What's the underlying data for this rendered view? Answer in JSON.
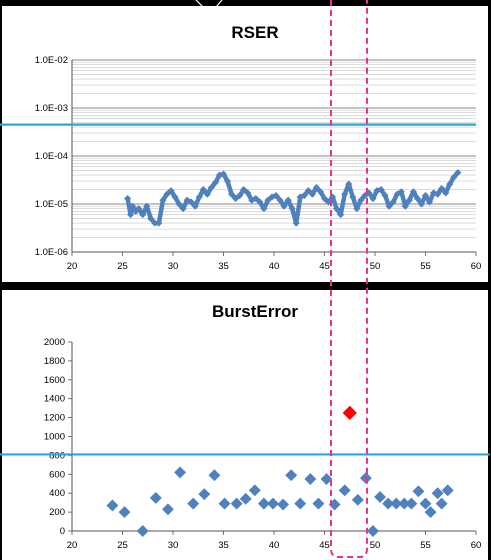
{
  "chart_data": [
    {
      "type": "line",
      "title": "RSER",
      "xlabel": "",
      "ylabel": "",
      "y_scale": "log",
      "xlim": [
        20,
        60
      ],
      "ylim": [
        1e-06,
        0.01
      ],
      "x_ticks": [
        "20",
        "25",
        "30",
        "35",
        "40",
        "45",
        "50",
        "55",
        "60"
      ],
      "y_ticks": [
        "1.0E-06",
        "1.0E-05",
        "1.0E-04",
        "1.0E-03",
        "1.0E-02"
      ],
      "grid": true,
      "marker_color": "#4f81bd",
      "threshold_line": {
        "value": 0.00045,
        "color": "#2aa6d8"
      },
      "series": [
        {
          "x": [
            25.5,
            25.8,
            26.0,
            26.3,
            26.6,
            27.0,
            27.4,
            27.8,
            28.2,
            28.6,
            29.0,
            29.4,
            29.8,
            30.2,
            30.6,
            31.0,
            31.4,
            31.8,
            32.2,
            32.6,
            33.0,
            33.4,
            33.8,
            34.2,
            34.6,
            35.0,
            35.4,
            35.8,
            36.2,
            36.6,
            37.0,
            37.4,
            37.8,
            38.2,
            38.6,
            39.0,
            39.4,
            39.8,
            40.2,
            40.6,
            41.0,
            41.4,
            41.8,
            42.2,
            42.6,
            43.0,
            43.4,
            43.8,
            44.2,
            44.6,
            45.0,
            45.4,
            45.8,
            46.2,
            46.6,
            47.0,
            47.4,
            47.8,
            48.2,
            48.6,
            49.0,
            49.4,
            49.8,
            50.2,
            50.6,
            51.0,
            51.4,
            51.8,
            52.2,
            52.6,
            53.0,
            53.4,
            53.8,
            54.2,
            54.6,
            55.0,
            55.4,
            55.8,
            56.2,
            56.6,
            57.0,
            57.4,
            57.8,
            58.2
          ],
          "y": [
            1.3e-05,
            6e-06,
            9e-06,
            7e-06,
            8e-06,
            6e-06,
            9e-06,
            5e-06,
            4e-06,
            4e-06,
            1.2e-05,
            1.6e-05,
            1.9e-05,
            1.4e-05,
            1e-05,
            8e-06,
            1.2e-05,
            1.1e-05,
            9e-06,
            1.4e-05,
            2e-05,
            1.6e-05,
            2.2e-05,
            2.8e-05,
            4e-05,
            4.2e-05,
            3e-05,
            1.6e-05,
            1.3e-05,
            1.5e-05,
            2e-05,
            1.7e-05,
            1.2e-05,
            1.3e-05,
            1.1e-05,
            8e-06,
            1.2e-05,
            1.4e-05,
            1.5e-05,
            1.2e-05,
            9e-06,
            1.2e-05,
            8e-06,
            4e-06,
            1.4e-05,
            1.5e-05,
            1.9e-05,
            1.6e-05,
            2.2e-05,
            1.8e-05,
            1.3e-05,
            1.1e-05,
            1.4e-05,
            8e-06,
            6e-06,
            1.6e-05,
            2.6e-05,
            1.4e-05,
            8e-06,
            1.2e-05,
            1.5e-05,
            1.7e-05,
            1.3e-05,
            1.9e-05,
            2e-05,
            1.5e-05,
            9e-06,
            1.1e-05,
            1.6e-05,
            1.8e-05,
            9e-06,
            1.2e-05,
            1.8e-05,
            1.3e-05,
            1e-05,
            1.5e-05,
            1.1e-05,
            1.7e-05,
            1.6e-05,
            2.1e-05,
            1.7e-05,
            2.6e-05,
            3.6e-05,
            4.5e-05
          ]
        }
      ]
    },
    {
      "type": "scatter",
      "title": "BurstError",
      "xlabel": "",
      "ylabel": "",
      "xlim": [
        20,
        60
      ],
      "ylim": [
        0,
        2000
      ],
      "x_ticks": [
        "20",
        "25",
        "30",
        "35",
        "40",
        "45",
        "50",
        "55",
        "60"
      ],
      "y_ticks": [
        "0",
        "200",
        "400",
        "600",
        "800",
        "1000",
        "1200",
        "1400",
        "1600",
        "1800",
        "2000"
      ],
      "grid": false,
      "marker_color": "#4f81bd",
      "threshold_line": {
        "value": 810,
        "color": "#2aa6d8"
      },
      "series": [
        {
          "x": [
            24.0,
            25.2,
            27.0,
            28.3,
            29.5,
            30.7,
            32.0,
            33.1,
            34.1,
            35.1,
            36.3,
            37.2,
            38.1,
            39.0,
            39.9,
            40.9,
            41.7,
            42.6,
            43.6,
            44.4,
            45.2,
            46.0,
            47.0,
            48.3,
            49.1,
            49.8,
            50.5,
            51.3,
            52.1,
            52.9,
            53.6,
            54.3,
            55.0,
            55.5,
            56.2,
            56.6,
            57.2
          ],
          "y": [
            270,
            200,
            0,
            350,
            230,
            620,
            290,
            390,
            590,
            290,
            290,
            340,
            430,
            290,
            290,
            280,
            590,
            290,
            550,
            290,
            550,
            280,
            430,
            330,
            560,
            0,
            360,
            290,
            290,
            290,
            290,
            420,
            290,
            200,
            400,
            290,
            430
          ]
        },
        {
          "x": [
            47.5
          ],
          "y": [
            1250
          ],
          "color": "#ff0000"
        }
      ]
    }
  ]
}
